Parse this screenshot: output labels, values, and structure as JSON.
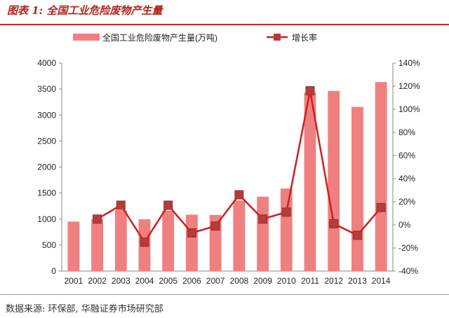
{
  "figure_label": "图表 1:  全国工业危险废物产生量",
  "source_note": "数据来源: 环保部, 华融证券市场研究部",
  "colors": {
    "bar": "#f08080",
    "line": "#cc1f1f",
    "marker": "#b73b3b",
    "title": "#b3261e"
  },
  "chart_data": {
    "type": "bar",
    "title": "",
    "categories": [
      "2001",
      "2002",
      "2003",
      "2004",
      "2005",
      "2006",
      "2007",
      "2008",
      "2009",
      "2010",
      "2011",
      "2012",
      "2013",
      "2014"
    ],
    "series": [
      {
        "name": "全国工业危险废物产生量(万吨)",
        "type": "bar",
        "axis": "left",
        "values": [
          952,
          1000,
          1171,
          995,
          1162,
          1084,
          1079,
          1357,
          1430,
          1587,
          3431,
          3465,
          3157,
          3634
        ]
      },
      {
        "name": "增长率",
        "type": "line",
        "axis": "right",
        "values": [
          null,
          5,
          17,
          -15,
          17,
          -7,
          -1,
          26,
          5,
          11,
          116,
          1,
          -9,
          15
        ]
      }
    ],
    "ylim_left": [
      0,
      4000
    ],
    "ylim_right": [
      -40,
      140
    ],
    "yticks_left": [
      "0",
      "500",
      "1000",
      "1500",
      "2000",
      "2500",
      "3000",
      "3500",
      "4000"
    ],
    "yticks_right": [
      "-40%",
      "-20%",
      "0%",
      "20%",
      "40%",
      "60%",
      "80%",
      "100%",
      "120%",
      "140%"
    ],
    "legend_position": "top",
    "grid": false
  }
}
